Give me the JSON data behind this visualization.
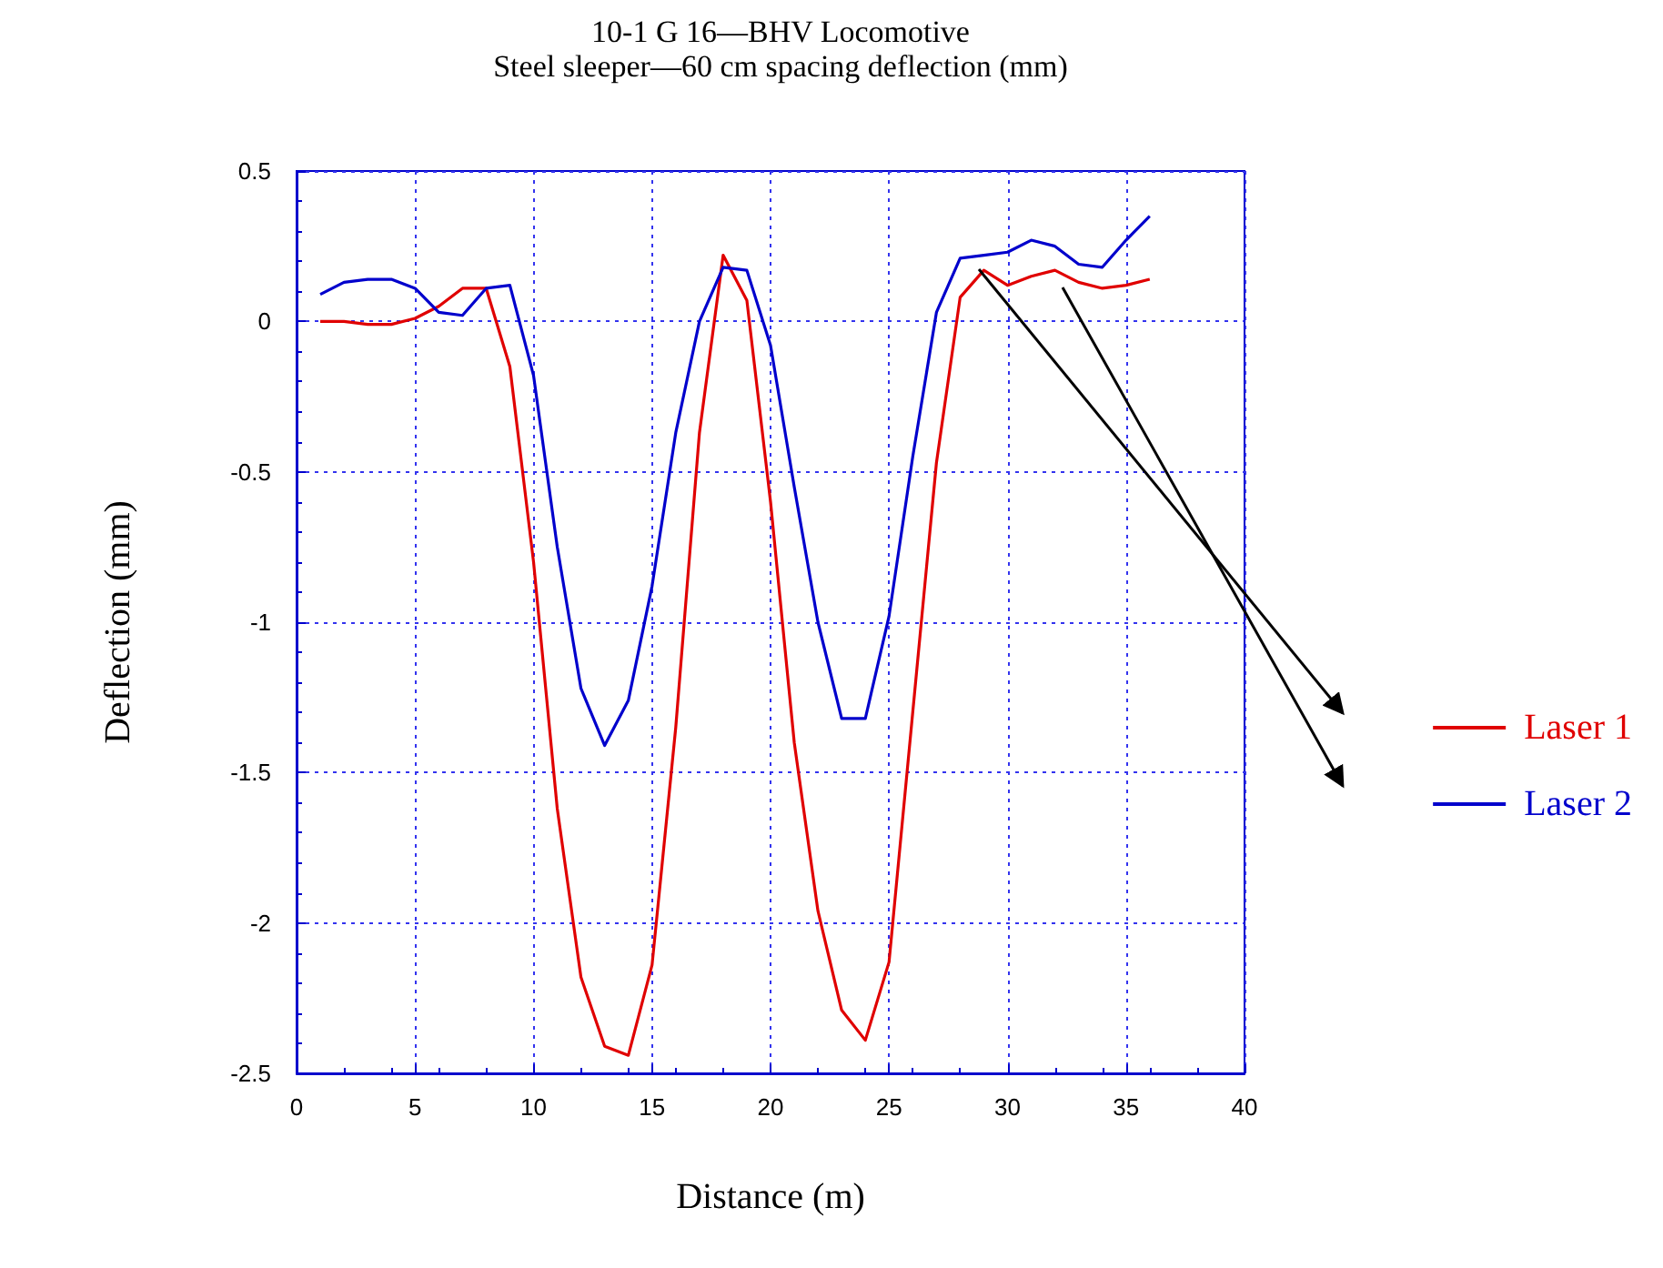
{
  "chart_data": {
    "type": "line",
    "title": "10-1 G 16—BHV Locomotive",
    "subtitle": "Steel sleeper—60 cm spacing deflection (mm)",
    "xlabel": "Distance (m)",
    "ylabel": "Deflection (mm)",
    "x": [
      1,
      2,
      3,
      4,
      5,
      6,
      7,
      8,
      9,
      10,
      11,
      12,
      13,
      14,
      15,
      16,
      17,
      18,
      19,
      20,
      21,
      22,
      23,
      24,
      25,
      26,
      27,
      28,
      29,
      30,
      31,
      32,
      33,
      34,
      35,
      36
    ],
    "series": [
      {
        "name": "Laser 1",
        "color": "#e00000",
        "values": [
          0.0,
          0.0,
          -0.01,
          -0.01,
          0.01,
          0.05,
          0.11,
          0.11,
          -0.15,
          -0.8,
          -1.62,
          -2.18,
          -2.41,
          -2.44,
          -2.14,
          -1.35,
          -0.37,
          0.22,
          0.07,
          -0.6,
          -1.4,
          -1.96,
          -2.29,
          -2.39,
          -2.13,
          -1.3,
          -0.47,
          0.08,
          0.17,
          0.12,
          0.15,
          0.17,
          0.13,
          0.11,
          0.12,
          0.14
        ]
      },
      {
        "name": "Laser 2",
        "color": "#0000cc",
        "values": [
          0.09,
          0.13,
          0.14,
          0.14,
          0.11,
          0.03,
          0.02,
          0.11,
          0.12,
          -0.18,
          -0.75,
          -1.22,
          -1.41,
          -1.26,
          -0.88,
          -0.37,
          0.0,
          0.18,
          0.17,
          -0.08,
          -0.55,
          -1.0,
          -1.32,
          -1.32,
          -0.98,
          -0.45,
          0.03,
          0.21,
          0.22,
          0.23,
          0.27,
          0.25,
          0.19,
          0.18,
          0.27,
          0.35
        ]
      }
    ],
    "xlim": [
      0,
      40
    ],
    "xticks": [
      0,
      5,
      10,
      15,
      20,
      25,
      30,
      35,
      40
    ],
    "ylim": [
      -2.5,
      0.5
    ],
    "yticks": [
      -2.5,
      -2,
      -1.5,
      -1,
      -0.5,
      0,
      0.5
    ],
    "grid": true,
    "legend": "right",
    "marker": "none",
    "line_style": "solid"
  }
}
